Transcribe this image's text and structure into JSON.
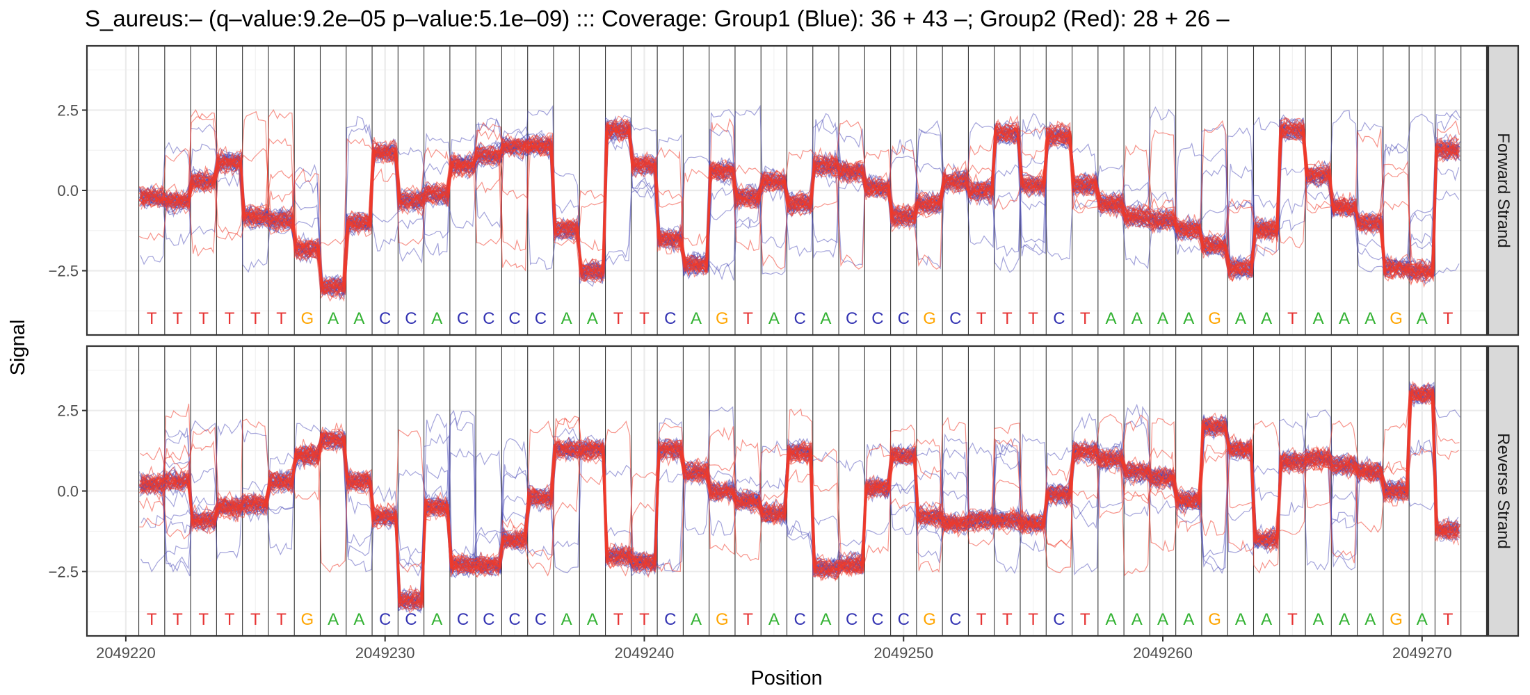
{
  "chart_data": {
    "type": "line",
    "title": "S_aureus:– (q–value:9.2e–05 p–value:5.1e–09) ::: Coverage: Group1 (Blue): 36 + 43 –; Group2 (Red): 28 + 26 –",
    "xlabel": "Position",
    "ylabel": "Signal",
    "x_range": [
      2049218.5,
      2049272.5
    ],
    "x_ticks": [
      2049220,
      2049230,
      2049240,
      2049250,
      2049260,
      2049270
    ],
    "x_tick_labels": [
      "2049220",
      "2049230",
      "2049240",
      "2049250",
      "2049260",
      "2049270"
    ],
    "y_range": [
      -4.5,
      4.5
    ],
    "y_ticks": [
      2.5,
      0.0,
      -2.5
    ],
    "y_tick_labels": [
      "2.5",
      "0.0",
      "−2.5"
    ],
    "grid": true,
    "base_start": 2049221,
    "sequence": [
      "T",
      "T",
      "T",
      "T",
      "T",
      "T",
      "G",
      "A",
      "A",
      "C",
      "C",
      "A",
      "C",
      "C",
      "C",
      "C",
      "A",
      "A",
      "T",
      "T",
      "C",
      "A",
      "G",
      "T",
      "A",
      "C",
      "A",
      "C",
      "C",
      "C",
      "G",
      "C",
      "T",
      "T",
      "T",
      "C",
      "T",
      "A",
      "A",
      "A",
      "A",
      "G",
      "A",
      "A",
      "T",
      "A",
      "A",
      "A",
      "G",
      "A",
      "T"
    ],
    "base_colors": {
      "A": "#33b233",
      "C": "#3333b2",
      "G": "#ffa500",
      "T": "#e63333"
    },
    "groups": [
      {
        "name": "Group1 (Blue)",
        "color": "#4a4ab8",
        "reads": 36
      },
      {
        "name": "Group2 (Red)",
        "color": "#f03a2a",
        "reads": 28
      }
    ],
    "panels": [
      {
        "strip": "Forward Strand",
        "signal_levels": [
          -0.2,
          -0.3,
          0.3,
          0.9,
          -0.8,
          -0.9,
          -1.8,
          -3.0,
          -1.0,
          1.2,
          -0.3,
          -0.1,
          0.8,
          1.1,
          1.4,
          1.4,
          -1.2,
          -2.5,
          1.9,
          0.8,
          -1.5,
          -2.3,
          0.6,
          -0.2,
          0.3,
          -0.4,
          0.8,
          0.6,
          0.1,
          -0.8,
          -0.4,
          0.3,
          0.0,
          1.8,
          0.2,
          1.7,
          0.2,
          -0.4,
          -0.8,
          -0.9,
          -1.2,
          -1.7,
          -2.4,
          -1.2,
          1.9,
          0.5,
          -0.5,
          -1.0,
          -2.4,
          -2.5,
          1.3
        ]
      },
      {
        "strip": "Reverse Strand",
        "signal_levels": [
          0.2,
          0.3,
          -0.9,
          -0.5,
          -0.4,
          0.3,
          1.1,
          1.6,
          0.3,
          -0.8,
          -3.4,
          -0.5,
          -2.3,
          -2.3,
          -1.5,
          -0.2,
          1.3,
          1.3,
          -2.0,
          -2.2,
          1.3,
          0.6,
          0.0,
          -0.3,
          -0.7,
          1.2,
          -2.4,
          -2.3,
          0.1,
          1.1,
          -0.8,
          -1.0,
          -0.9,
          -0.9,
          -1.0,
          -0.1,
          1.2,
          1.0,
          0.6,
          0.4,
          -0.3,
          2.0,
          1.3,
          -1.5,
          0.9,
          1.0,
          0.8,
          0.6,
          0.0,
          3.0,
          -1.2
        ]
      }
    ]
  }
}
